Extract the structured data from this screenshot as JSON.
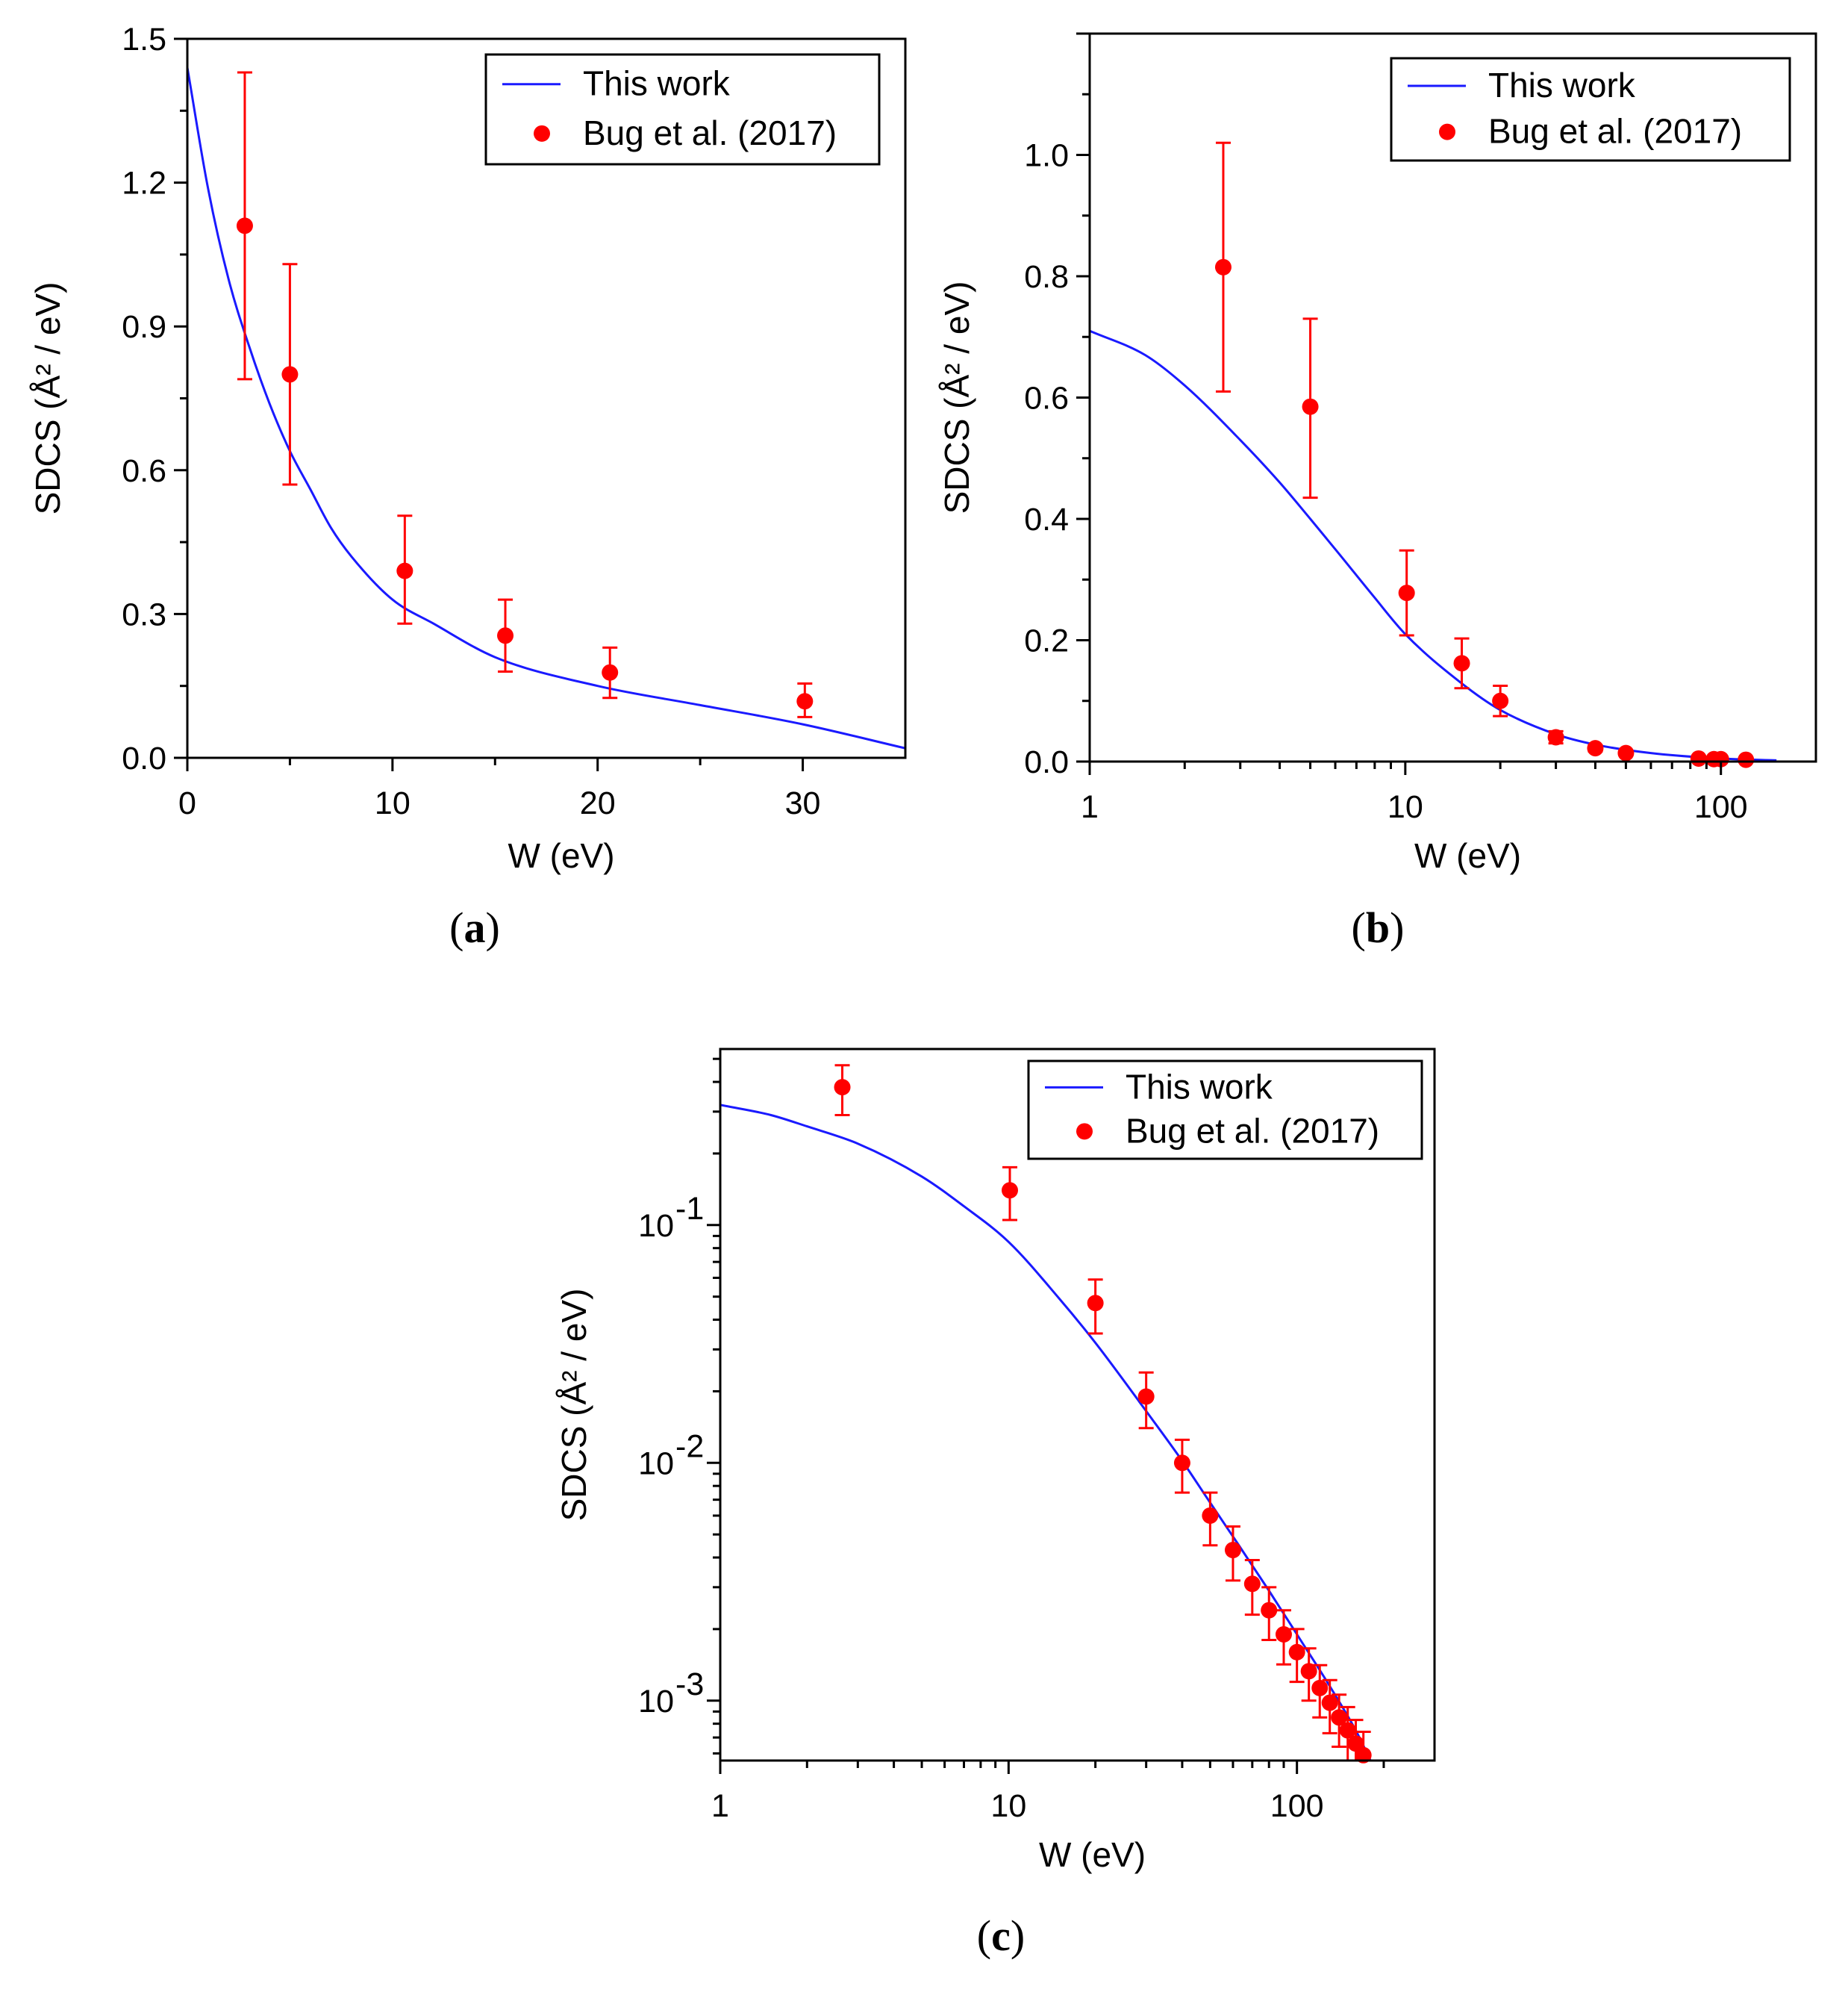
{
  "figure": {
    "legend": {
      "model_label": "This work",
      "data_label": "Bug et al. (2017)"
    },
    "colors": {
      "model": "#1a1aff",
      "data": "#ff0000",
      "axis": "#000000"
    }
  },
  "chart_data": [
    {
      "panel": "a",
      "caption_letter": "a",
      "type": "scatter",
      "xlabel": "W (eV)",
      "ylabel": "SDCS (Å² / eV)",
      "xscale": "linear",
      "yscale": "linear",
      "xlim": [
        0,
        35
      ],
      "ylim": [
        0,
        1.5
      ],
      "x_ticks": [
        0,
        10,
        20,
        30
      ],
      "x_tick_labels": [
        "0",
        "10",
        "20",
        "30"
      ],
      "y_ticks": [
        0.0,
        0.3,
        0.6,
        0.9,
        1.2,
        1.5
      ],
      "y_tick_labels": [
        "0.0",
        "0.3",
        "0.6",
        "0.9",
        "1.2",
        "1.5"
      ],
      "legend_position": "top-right",
      "series": [
        {
          "name": "This work",
          "kind": "line",
          "x": [
            0,
            1,
            2,
            3,
            4,
            5,
            6,
            7,
            8,
            10,
            12,
            15,
            20,
            25,
            30,
            35
          ],
          "y": [
            1.44,
            1.19,
            1.0,
            0.86,
            0.74,
            0.64,
            0.56,
            0.48,
            0.42,
            0.33,
            0.28,
            0.21,
            0.15,
            0.11,
            0.07,
            0.02
          ]
        },
        {
          "name": "Bug et al. (2017)",
          "kind": "points",
          "x": [
            2.8,
            5.0,
            10.6,
            15.5,
            20.6,
            30.1
          ],
          "y": [
            1.11,
            0.8,
            0.39,
            0.255,
            0.178,
            0.118
          ],
          "err_low": [
            0.79,
            0.57,
            0.28,
            0.18,
            0.125,
            0.085
          ],
          "err_high": [
            1.43,
            1.03,
            0.505,
            0.33,
            0.23,
            0.155
          ]
        }
      ]
    },
    {
      "panel": "b",
      "caption_letter": "b",
      "type": "scatter",
      "xlabel": "W (eV)",
      "ylabel": "SDCS (Å² / eV)",
      "xscale": "log",
      "yscale": "linear",
      "xlim": [
        1,
        200
      ],
      "ylim": [
        0,
        1.2
      ],
      "x_ticks": [
        1,
        10,
        100
      ],
      "x_tick_labels": [
        "1",
        "10",
        "100"
      ],
      "y_ticks": [
        0.0,
        0.2,
        0.4,
        0.6,
        0.8,
        1.0
      ],
      "y_tick_labels": [
        "0.0",
        "0.2",
        "0.4",
        "0.6",
        "0.8",
        "1.0"
      ],
      "legend_position": "top-right",
      "series": [
        {
          "name": "This work",
          "kind": "line",
          "x": [
            1,
            1.5,
            2,
            3,
            4,
            5,
            6,
            8,
            10,
            15,
            20,
            30,
            40,
            60,
            100,
            150
          ],
          "y": [
            0.71,
            0.67,
            0.62,
            0.53,
            0.46,
            0.4,
            0.35,
            0.27,
            0.21,
            0.13,
            0.085,
            0.045,
            0.028,
            0.014,
            0.005,
            0.002
          ]
        },
        {
          "name": "Bug et al. (2017)",
          "kind": "points",
          "x": [
            2.65,
            5.0,
            10.1,
            15.1,
            20.0,
            30.0,
            40.0,
            50.0,
            85.0,
            95.0,
            100.0,
            120.0
          ],
          "y": [
            0.815,
            0.585,
            0.278,
            0.162,
            0.1,
            0.04,
            0.022,
            0.014,
            0.005,
            0.004,
            0.004,
            0.003
          ],
          "err_low": [
            0.61,
            0.435,
            0.208,
            0.121,
            0.075,
            0.03,
            0.017,
            0.011,
            0.004,
            0.003,
            0.003,
            0.002
          ],
          "err_high": [
            1.02,
            0.73,
            0.348,
            0.203,
            0.125,
            0.05,
            0.027,
            0.017,
            0.006,
            0.005,
            0.005,
            0.004
          ]
        }
      ]
    },
    {
      "panel": "c",
      "caption_letter": "c",
      "type": "scatter",
      "xlabel": "W (eV)",
      "ylabel": "SDCS (Å² / eV)",
      "xscale": "log",
      "yscale": "log",
      "xlim": [
        1,
        300
      ],
      "ylim": [
        0.00056,
        0.55
      ],
      "x_ticks": [
        1,
        10,
        100
      ],
      "x_tick_labels": [
        "1",
        "10",
        "100"
      ],
      "y_ticks": [
        0.001,
        0.01,
        0.1
      ],
      "y_tick_mantissa": [
        "10",
        "10",
        "10"
      ],
      "y_tick_exponents": [
        "-3",
        "-2",
        "-1"
      ],
      "legend_position": "top-right",
      "series": [
        {
          "name": "This work",
          "kind": "line",
          "x": [
            1,
            1.5,
            2,
            3,
            5,
            7,
            10,
            15,
            20,
            30,
            40,
            50,
            60,
            80,
            100,
            130,
            160,
            180
          ],
          "y": [
            0.32,
            0.29,
            0.26,
            0.22,
            0.16,
            0.12,
            0.085,
            0.049,
            0.032,
            0.0165,
            0.0102,
            0.0068,
            0.0049,
            0.0029,
            0.0019,
            0.00115,
            0.00075,
            0.00056
          ]
        },
        {
          "name": "Bug et al. (2017)",
          "kind": "points",
          "x": [
            2.65,
            10.1,
            20.0,
            30.0,
            40.0,
            50.0,
            60.0,
            70.0,
            80.0,
            90.0,
            100.0,
            110.0,
            120.0,
            130.0,
            140.0,
            150.0,
            160.0,
            170.0
          ],
          "y": [
            0.38,
            0.14,
            0.047,
            0.019,
            0.01,
            0.006,
            0.0043,
            0.0031,
            0.0024,
            0.0019,
            0.0016,
            0.00133,
            0.00113,
            0.00098,
            0.00085,
            0.00075,
            0.00066,
            0.00059
          ],
          "err_low": [
            0.29,
            0.105,
            0.035,
            0.014,
            0.0075,
            0.0045,
            0.0032,
            0.0023,
            0.0018,
            0.00142,
            0.0012,
            0.001,
            0.00085,
            0.00073,
            0.00064,
            0.00056,
            0.00056,
            0.00056
          ],
          "err_high": [
            0.47,
            0.175,
            0.059,
            0.024,
            0.0125,
            0.0075,
            0.0054,
            0.0039,
            0.003,
            0.0024,
            0.002,
            0.00166,
            0.00141,
            0.00122,
            0.00106,
            0.00094,
            0.00083,
            0.00074
          ]
        }
      ]
    }
  ]
}
